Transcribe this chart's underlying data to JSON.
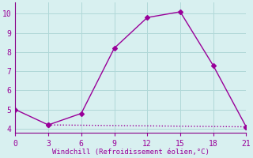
{
  "line1_x": [
    0,
    3,
    6,
    9,
    12,
    15,
    18,
    21
  ],
  "line1_y": [
    5,
    4.2,
    4.8,
    8.2,
    9.8,
    10.1,
    7.3,
    4.1
  ],
  "line2_x": [
    3,
    21
  ],
  "line2_y": [
    4.2,
    4.1
  ],
  "line_color": "#990099",
  "bg_color": "#d8f0f0",
  "grid_color": "#b0d8d8",
  "xlabel": "Windchill (Refroidissement éolien,°C)",
  "xlim": [
    0,
    21
  ],
  "ylim": [
    3.8,
    10.6
  ],
  "xticks": [
    0,
    3,
    6,
    9,
    12,
    15,
    18,
    21
  ],
  "yticks": [
    4,
    5,
    6,
    7,
    8,
    9,
    10
  ],
  "xlabel_color": "#990099",
  "tick_color": "#990099",
  "marker": "D",
  "markersize": 3,
  "linewidth": 1.0,
  "spine_color": "#880088",
  "tick_fontsize": 7,
  "xlabel_fontsize": 6.5
}
